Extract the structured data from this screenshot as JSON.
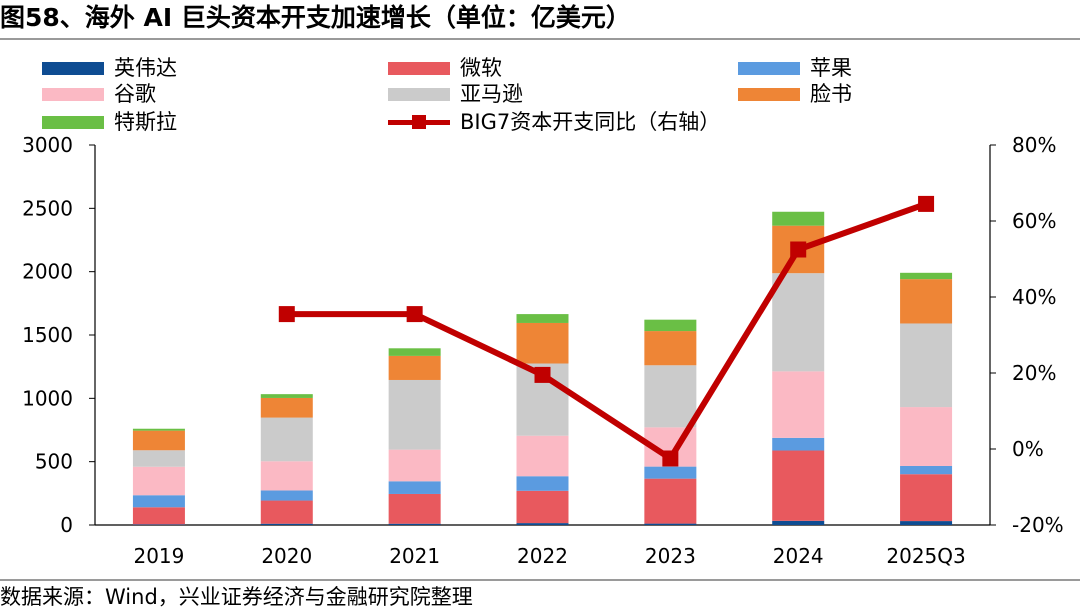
{
  "title": "图58、海外 AI 巨头资本开支加速增长（单位：亿美元）",
  "source": "数据来源：Wind，兴业证券经济与金融研究院整理",
  "colors": {
    "nvidia": "#0e4c92",
    "microsoft": "#e8595e",
    "apple": "#5b9be0",
    "google": "#fbb9c4",
    "amazon": "#cbcbcb",
    "meta": "#ee8536",
    "tesla": "#6abf45",
    "line": "#c00000",
    "axis": "#000000"
  },
  "chart_data": {
    "type": "bar",
    "stacked": true,
    "categories": [
      "2019",
      "2020",
      "2021",
      "2022",
      "2023",
      "2024",
      "2025Q3"
    ],
    "series": [
      {
        "name": "英伟达",
        "key": "nvidia",
        "values": [
          5,
          10,
          10,
          15,
          11,
          33,
          31
        ]
      },
      {
        "name": "微软",
        "key": "microsoft",
        "values": [
          135,
          183,
          235,
          255,
          355,
          555,
          370
        ]
      },
      {
        "name": "苹果",
        "key": "apple",
        "values": [
          95,
          80,
          100,
          115,
          95,
          100,
          65
        ]
      },
      {
        "name": "谷歌",
        "key": "google",
        "values": [
          225,
          230,
          250,
          320,
          310,
          525,
          465
        ]
      },
      {
        "name": "亚马逊",
        "key": "amazon",
        "values": [
          130,
          345,
          550,
          570,
          490,
          775,
          660
        ]
      },
      {
        "name": "脸书",
        "key": "meta",
        "values": [
          155,
          155,
          190,
          320,
          270,
          375,
          350
        ]
      },
      {
        "name": "特斯拉",
        "key": "tesla",
        "values": [
          15,
          30,
          60,
          70,
          90,
          110,
          50
        ]
      }
    ],
    "line_series": {
      "name": "BIG7资本开支同比（右轴）",
      "axis": "right",
      "values": [
        null,
        35.5,
        35.5,
        19.5,
        -2.5,
        52.5,
        64.5
      ]
    },
    "yleft": {
      "min": 0,
      "max": 3000,
      "ticks": [
        "0",
        "500",
        "1000",
        "1500",
        "2000",
        "2500",
        "3000"
      ]
    },
    "yright": {
      "min": -20,
      "max": 80,
      "ticks": [
        "-20%",
        "0%",
        "20%",
        "40%",
        "60%",
        "80%"
      ]
    },
    "legend_position": "top",
    "grid": false
  }
}
